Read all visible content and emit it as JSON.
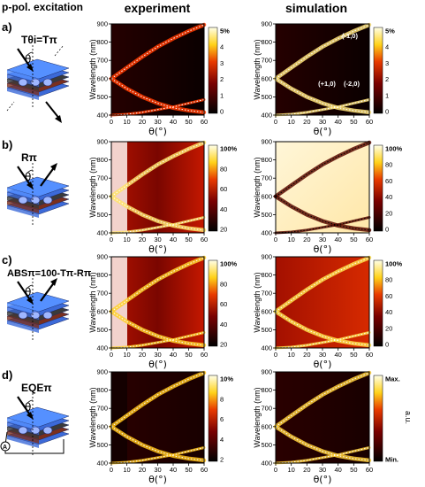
{
  "header": {
    "left": "p-pol. excitation",
    "col_experiment": "experiment",
    "col_simulation": "simulation"
  },
  "rows": [
    {
      "letter": "a)",
      "quantity_label": "Tθi=Tπ",
      "exp": {
        "colorbar_ticks": [
          "5%",
          "4",
          "3",
          "2",
          "1",
          "0"
        ],
        "colormap": "black-red-yellow-white"
      },
      "sim": {
        "colorbar_ticks": [
          "5%",
          "4",
          "3",
          "2",
          "1",
          "0"
        ],
        "colormap": "black-red-yellow-white",
        "annotations": [
          "(-1,0)",
          "(+1,0)",
          "(-2,0)"
        ]
      }
    },
    {
      "letter": "b)",
      "quantity_label": "Rπ",
      "exp": {
        "colorbar_ticks": [
          "100%",
          "80",
          "60",
          "40",
          "20"
        ],
        "colormap": "black-red-yellow-white"
      },
      "sim": {
        "colorbar_ticks": [
          "100%",
          "80",
          "60",
          "40",
          "20",
          "0"
        ],
        "colormap": "black-red-yellow-white"
      }
    },
    {
      "letter": "c)",
      "quantity_label": "ABSπ=100-Tπ-Rπ",
      "exp": {
        "colorbar_ticks": [
          "100%",
          "80",
          "60",
          "40",
          "20"
        ],
        "colormap": "black-red-yellow-white"
      },
      "sim": {
        "colorbar_ticks": [
          "100%",
          "80",
          "60",
          "40",
          "20",
          "0"
        ],
        "colormap": "black-red-yellow-white"
      }
    },
    {
      "letter": "d)",
      "quantity_label": "EQEπ",
      "exp": {
        "colorbar_ticks": [
          "10%",
          "8",
          "6",
          "4",
          "2"
        ],
        "colormap": "black-red-yellow-white"
      },
      "sim": {
        "colorbar_ticks": [
          "Max.",
          "Min."
        ],
        "colorbar_unit": "a.u.",
        "colormap": "black-red-yellow-white"
      }
    }
  ],
  "axes": {
    "ylabel": "Wavelength (nm)",
    "xlabel": "θ(°)",
    "x_ticks": [
      "0",
      "10",
      "20",
      "30",
      "40",
      "50",
      "60"
    ],
    "y_ticks": [
      "900",
      "800",
      "700",
      "600",
      "500",
      "400"
    ],
    "xlim": [
      0,
      60
    ],
    "ylim": [
      400,
      900
    ]
  },
  "chart_data": {
    "type": "heatmap",
    "description_axes": {
      "x": "θ(°)",
      "y": "Wavelength (nm)"
    },
    "xlim": [
      0,
      60
    ],
    "ylim": [
      400,
      900
    ],
    "dispersion_lines": [
      {
        "name": "(-1,0)",
        "x": [
          0,
          10,
          20,
          30,
          40,
          50,
          60
        ],
        "y": [
          600,
          660,
          720,
          775,
          820,
          860,
          895
        ]
      },
      {
        "name": "(+1,0)",
        "x": [
          0,
          10,
          20,
          30,
          40,
          50,
          60
        ],
        "y": [
          600,
          545,
          500,
          465,
          440,
          425,
          415
        ]
      },
      {
        "name": "(-2,0)",
        "x": [
          0,
          10,
          20,
          30,
          40,
          50,
          60
        ],
        "y": [
          400,
          405,
          415,
          430,
          445,
          465,
          485
        ]
      }
    ],
    "panels": [
      {
        "row": "a)",
        "col": "experiment",
        "z_unit": "%",
        "z_range": [
          0,
          5
        ]
      },
      {
        "row": "a)",
        "col": "simulation",
        "z_unit": "%",
        "z_range": [
          0,
          5
        ]
      },
      {
        "row": "b)",
        "col": "experiment",
        "z_unit": "%",
        "z_range": [
          20,
          100
        ]
      },
      {
        "row": "b)",
        "col": "simulation",
        "z_unit": "%",
        "z_range": [
          0,
          100
        ]
      },
      {
        "row": "c)",
        "col": "experiment",
        "z_unit": "%",
        "z_range": [
          20,
          100
        ]
      },
      {
        "row": "c)",
        "col": "simulation",
        "z_unit": "%",
        "z_range": [
          0,
          100
        ]
      },
      {
        "row": "d)",
        "col": "experiment",
        "z_unit": "%",
        "z_range": [
          2,
          10
        ]
      },
      {
        "row": "d)",
        "col": "simulation",
        "z_unit": "a.u."
      }
    ]
  }
}
